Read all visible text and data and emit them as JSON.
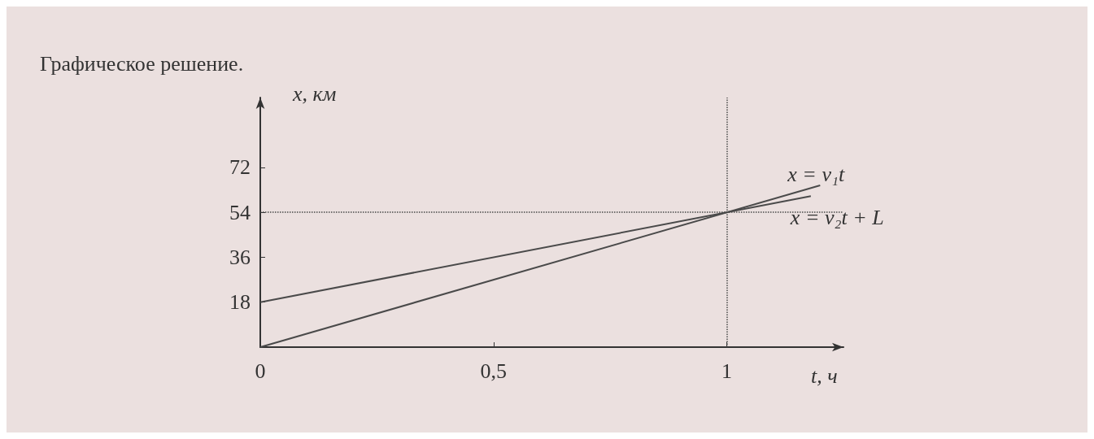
{
  "chart_data": {
    "type": "line",
    "title": "Графическое решение.",
    "xlabel": "t, ч",
    "ylabel": "x, км",
    "series": [
      {
        "x": [
          0,
          1.2
        ],
        "values": [
          0,
          64.8
        ],
        "color": "#4a4a4a"
      },
      {
        "x": [
          0,
          1.18
        ],
        "values": [
          18,
          60.5
        ],
        "color": "#4a4a4a"
      }
    ],
    "xlim": [
      0,
      1.25
    ],
    "ylim": [
      0,
      100
    ],
    "xticks": [
      0,
      {
        "value": 0.5,
        "label": "0,5"
      },
      1
    ],
    "yticks": [
      {
        "value": 0,
        "label": null
      },
      18,
      36,
      54,
      72
    ],
    "ref_lines": [
      {
        "axis": "x",
        "value": 1,
        "line_style": "dotted",
        "color": "#4a4a4a"
      },
      {
        "axis": "y",
        "value": 54,
        "line_style": "dotted",
        "color": "#4a4a4a"
      }
    ],
    "annotations": [
      {
        "text": "x = v₁t",
        "x": 1.2,
        "y": 64.8
      },
      {
        "text": "x = v₂t + L",
        "x": 1.18,
        "y": 60.5
      }
    ],
    "grid": false,
    "marker": "none",
    "line_style": "solid"
  }
}
